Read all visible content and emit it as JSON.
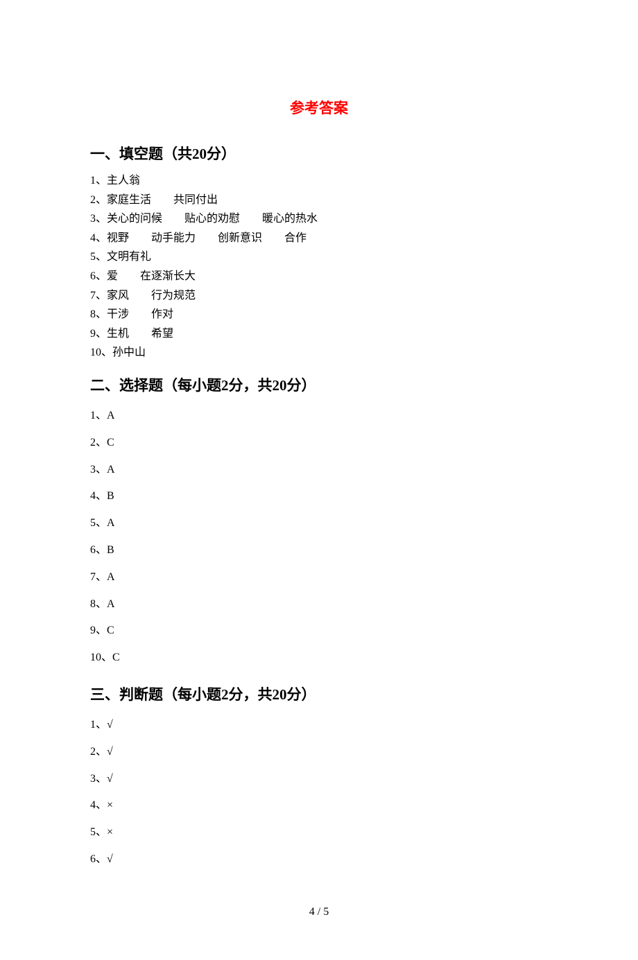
{
  "title": "参考答案",
  "sections": {
    "s1": {
      "header": "一、填空题（共20分）",
      "items": [
        "1、主人翁",
        "2、家庭生活　　共同付出",
        "3、关心的问候　　贴心的劝慰　　暖心的热水",
        "4、视野　　动手能力　　创新意识　　合作",
        "5、文明有礼",
        "6、爱　　在逐渐长大",
        "7、家风　　行为规范",
        "8、干涉　　作对",
        "9、生机　　希望",
        "10、孙中山"
      ]
    },
    "s2": {
      "header": "二、选择题（每小题2分，共20分）",
      "items": [
        "1、A",
        "2、C",
        "3、A",
        "4、B",
        "5、A",
        "6、B",
        "7、A",
        "8、A",
        "9、C",
        "10、C"
      ]
    },
    "s3": {
      "header": "三、判断题（每小题2分，共20分）",
      "items": [
        "1、√",
        "2、√",
        "3、√",
        "4、×",
        "5、×",
        "6、√"
      ]
    }
  },
  "pageNumber": "4 / 5",
  "styling": {
    "title_color": "#ff0000",
    "text_color": "#000000",
    "background_color": "#ffffff",
    "title_fontsize": 21,
    "header_fontsize": 21,
    "body_fontsize": 16,
    "font_family": "SimSun"
  }
}
